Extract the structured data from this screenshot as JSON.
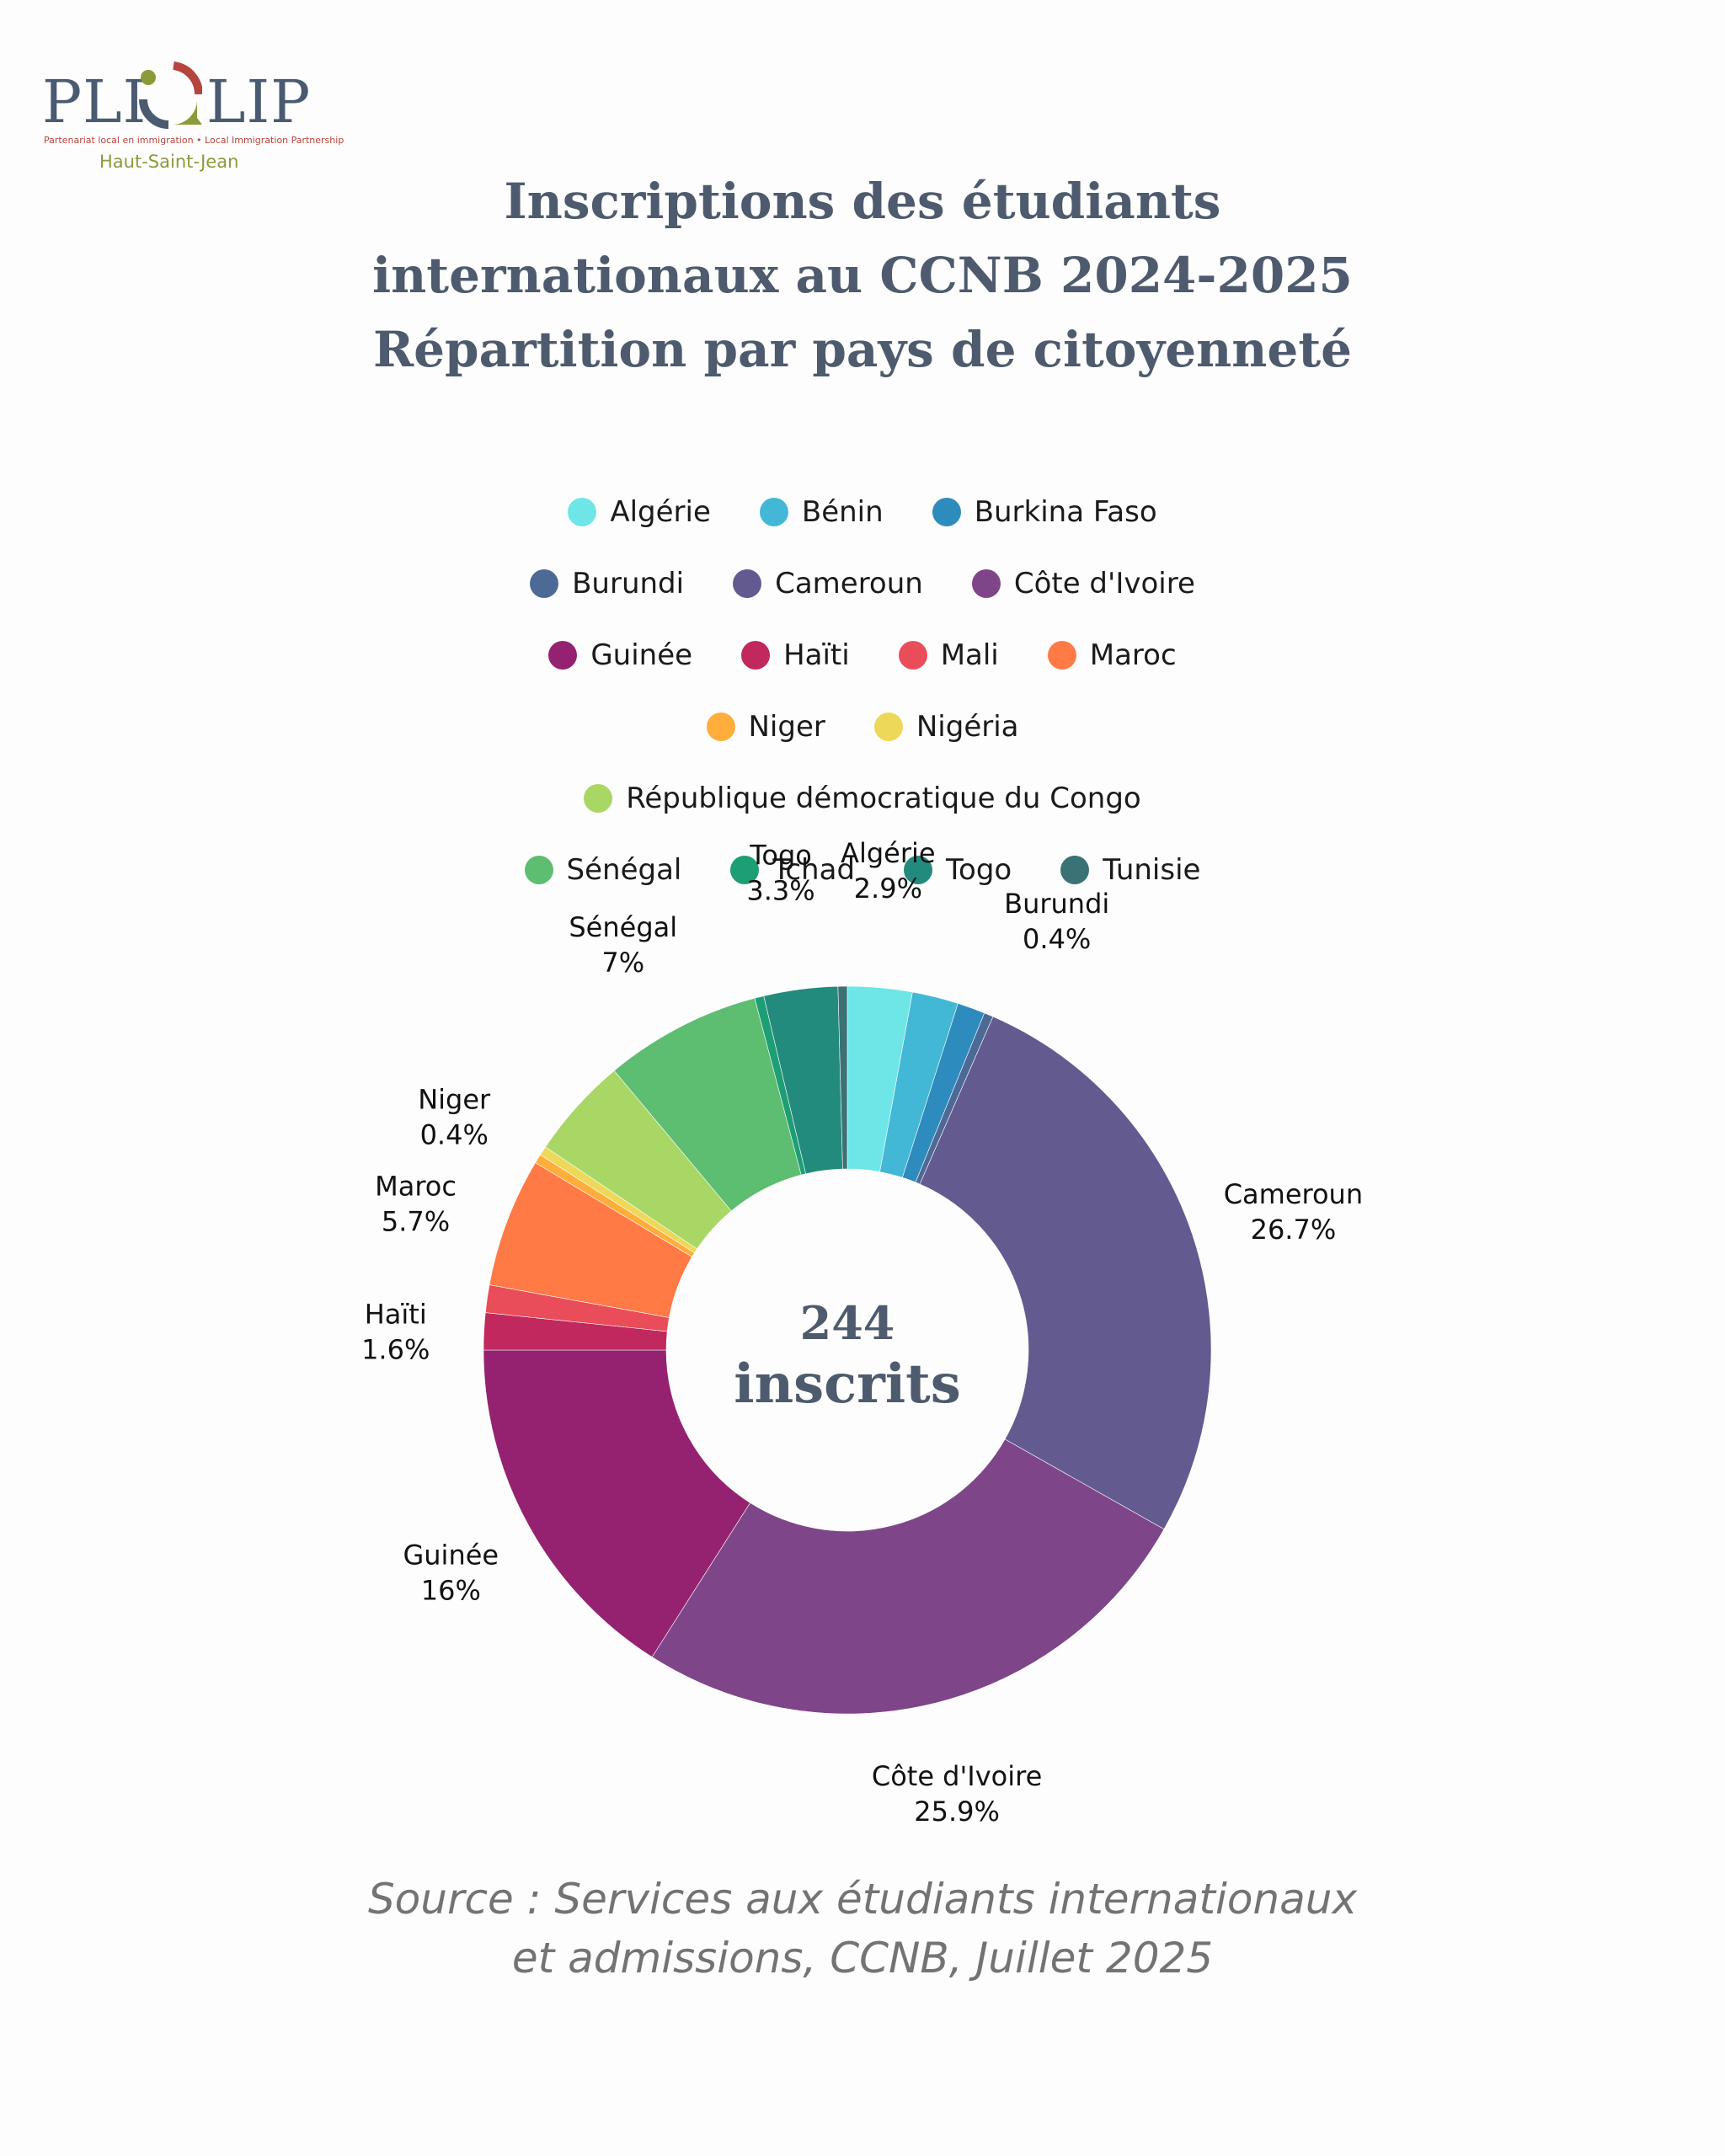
{
  "logo": {
    "word_left": "PLI",
    "word_right": "LIP",
    "tagline": "Partenariat local en immigration • Local Immigration Partnership",
    "region": "Haut-Saint-Jean",
    "colors": {
      "navy": "#4a5a70",
      "red": "#b5453d",
      "olive": "#8d9a3a"
    }
  },
  "title": {
    "line1": "Inscriptions des étudiants",
    "line2": "internationaux au CCNB 2024-2025",
    "line3": "Répartition par pays de citoyenneté"
  },
  "legend_rows": [
    [
      0,
      1,
      2
    ],
    [
      3,
      4,
      5
    ],
    [
      6,
      7,
      8,
      9
    ],
    [
      10,
      11
    ],
    [
      12
    ],
    [
      13,
      14,
      15,
      16
    ]
  ],
  "chart_data": {
    "type": "pie",
    "subtype": "donut",
    "title": "Inscriptions des étudiants internationaux au CCNB 2024-2025 — Répartition par pays de citoyenneté",
    "total": 244,
    "center_label": {
      "value": "244",
      "text": "inscrits"
    },
    "legend_position": "top",
    "start": "top-clockwise",
    "categories": [
      "Algérie",
      "Bénin",
      "Burkina Faso",
      "Burundi",
      "Cameroun",
      "Côte d'Ivoire",
      "Guinée",
      "Haïti",
      "Mali",
      "Maroc",
      "Niger",
      "Nigéria",
      "République démocratique du Congo",
      "Sénégal",
      "Tchad",
      "Togo",
      "Tunisie"
    ],
    "values": [
      7,
      5,
      3,
      1,
      65,
      63,
      39,
      4,
      3,
      14,
      1,
      1,
      11,
      17,
      1,
      8,
      1
    ],
    "percent": [
      2.9,
      2.0,
      1.2,
      0.4,
      26.7,
      25.9,
      16.0,
      1.6,
      1.2,
      5.7,
      0.4,
      0.4,
      4.5,
      7.0,
      0.4,
      3.3,
      0.4
    ],
    "colors": [
      "#6ee6e8",
      "#42b8d6",
      "#2e8bbd",
      "#4d6a96",
      "#635a90",
      "#7e4689",
      "#952270",
      "#c0285e",
      "#e94d5a",
      "#ff7a45",
      "#ffad3b",
      "#eed85a",
      "#a8d766",
      "#5dbd70",
      "#1e9e74",
      "#238a7e",
      "#3a7275"
    ],
    "slice_labels": [
      {
        "index": 0,
        "name": "Algérie",
        "pct": "2.9%"
      },
      {
        "index": 3,
        "name": "Burundi",
        "pct": "0.4%"
      },
      {
        "index": 4,
        "name": "Cameroun",
        "pct": "26.7%"
      },
      {
        "index": 5,
        "name": "Côte d'Ivoire",
        "pct": "25.9%"
      },
      {
        "index": 6,
        "name": "Guinée",
        "pct": "16%"
      },
      {
        "index": 7,
        "name": "Haïti",
        "pct": "1.6%"
      },
      {
        "index": 9,
        "name": "Maroc",
        "pct": "5.7%"
      },
      {
        "index": 10,
        "name": "Niger",
        "pct": "0.4%"
      },
      {
        "index": 13,
        "name": "Sénégal",
        "pct": "7%"
      },
      {
        "index": 15,
        "name": "Togo",
        "pct": "3.3%"
      }
    ]
  },
  "source": {
    "line1": "Source : Services aux étudiants internationaux",
    "line2": "et admissions,  CCNB, Juillet 2025"
  }
}
